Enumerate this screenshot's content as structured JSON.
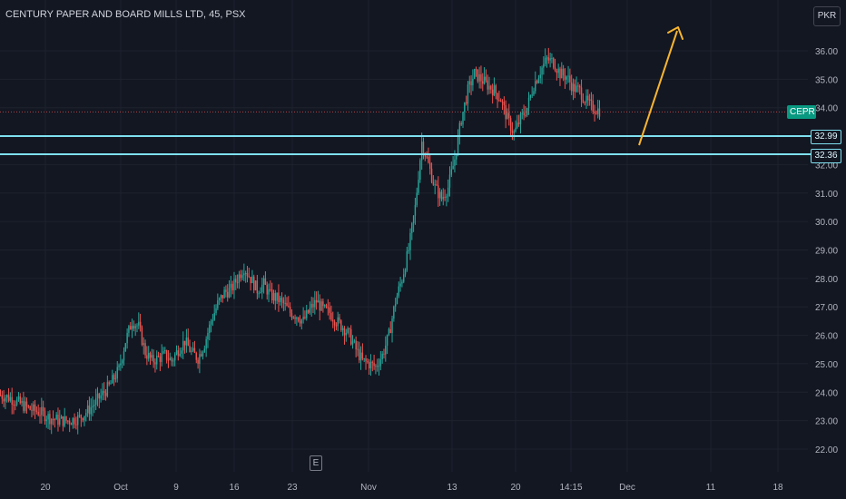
{
  "header": {
    "title": "CENTURY PAPER AND BOARD MILLS LTD, 45, PSX",
    "currency_button": "PKR"
  },
  "tags": {
    "symbol": "CEPR",
    "level_1": "32.99",
    "level_2": "32.36"
  },
  "earnings_badge": "E",
  "colors": {
    "background": "#131722",
    "up": "#26a69a",
    "down": "#ef5350",
    "level_line": "#7fe0f0",
    "arrow": "#f7b531"
  },
  "chart_data": {
    "type": "candlestick",
    "title": "CENTURY PAPER AND BOARD MILLS LTD, 45, PSX",
    "y_ticks": [
      "22.00",
      "23.00",
      "24.00",
      "25.00",
      "26.00",
      "27.00",
      "28.00",
      "29.00",
      "30.00",
      "31.00",
      "32.00",
      "33.00",
      "34.00",
      "35.00",
      "36.00"
    ],
    "x_ticks": [
      "20",
      "Oct",
      "9",
      "16",
      "23",
      "Nov",
      "13",
      "20",
      "14:15",
      "Dec",
      "11",
      "18"
    ],
    "ylim": [
      21.5,
      36.6
    ],
    "horizontal_levels": [
      32.99,
      32.36
    ],
    "last_price": 33.85,
    "close_path": [
      [
        0,
        23.9
      ],
      [
        6,
        23.8
      ],
      [
        12,
        23.6
      ],
      [
        18,
        23.4
      ],
      [
        24,
        23.3
      ],
      [
        30,
        23.1
      ],
      [
        36,
        23.0
      ],
      [
        42,
        23.0
      ],
      [
        48,
        23.1
      ],
      [
        54,
        23.4
      ],
      [
        60,
        23.8
      ],
      [
        66,
        24.2
      ],
      [
        72,
        24.8
      ],
      [
        76,
        25.8
      ],
      [
        80,
        26.5
      ],
      [
        84,
        26.3
      ],
      [
        88,
        25.4
      ],
      [
        92,
        25.1
      ],
      [
        96,
        25.2
      ],
      [
        100,
        25.3
      ],
      [
        104,
        25.1
      ],
      [
        108,
        25.5
      ],
      [
        112,
        25.8
      ],
      [
        116,
        25.4
      ],
      [
        120,
        25.2
      ],
      [
        124,
        25.7
      ],
      [
        128,
        26.5
      ],
      [
        132,
        27.1
      ],
      [
        136,
        27.5
      ],
      [
        140,
        27.6
      ],
      [
        144,
        28.0
      ],
      [
        148,
        28.4
      ],
      [
        152,
        28.0
      ],
      [
        156,
        27.6
      ],
      [
        160,
        27.8
      ],
      [
        164,
        27.4
      ],
      [
        168,
        27.3
      ],
      [
        172,
        27.1
      ],
      [
        176,
        26.8
      ],
      [
        180,
        26.7
      ],
      [
        184,
        26.5
      ],
      [
        188,
        26.9
      ],
      [
        192,
        27.2
      ],
      [
        196,
        26.9
      ],
      [
        200,
        26.8
      ],
      [
        204,
        26.5
      ],
      [
        208,
        26.3
      ],
      [
        212,
        26.0
      ],
      [
        216,
        25.5
      ],
      [
        220,
        25.1
      ],
      [
        224,
        25.0
      ],
      [
        228,
        24.9
      ],
      [
        232,
        25.3
      ],
      [
        236,
        26.0
      ],
      [
        240,
        27.2
      ],
      [
        244,
        28.0
      ],
      [
        248,
        29.0
      ],
      [
        252,
        30.5
      ],
      [
        256,
        32.8
      ],
      [
        260,
        32.0
      ],
      [
        264,
        31.2
      ],
      [
        268,
        30.8
      ],
      [
        272,
        31.2
      ],
      [
        276,
        32.2
      ],
      [
        280,
        33.6
      ],
      [
        284,
        34.6
      ],
      [
        288,
        35.2
      ],
      [
        292,
        35.0
      ],
      [
        296,
        34.8
      ],
      [
        300,
        34.6
      ],
      [
        304,
        34.3
      ],
      [
        308,
        33.6
      ],
      [
        312,
        33.1
      ],
      [
        316,
        33.6
      ],
      [
        320,
        34.0
      ],
      [
        324,
        34.8
      ],
      [
        328,
        35.3
      ],
      [
        332,
        35.7
      ],
      [
        336,
        35.6
      ],
      [
        340,
        35.2
      ],
      [
        344,
        35.1
      ],
      [
        348,
        34.7
      ],
      [
        352,
        34.6
      ],
      [
        356,
        34.2
      ],
      [
        360,
        34.0
      ],
      [
        364,
        33.9
      ]
    ]
  }
}
